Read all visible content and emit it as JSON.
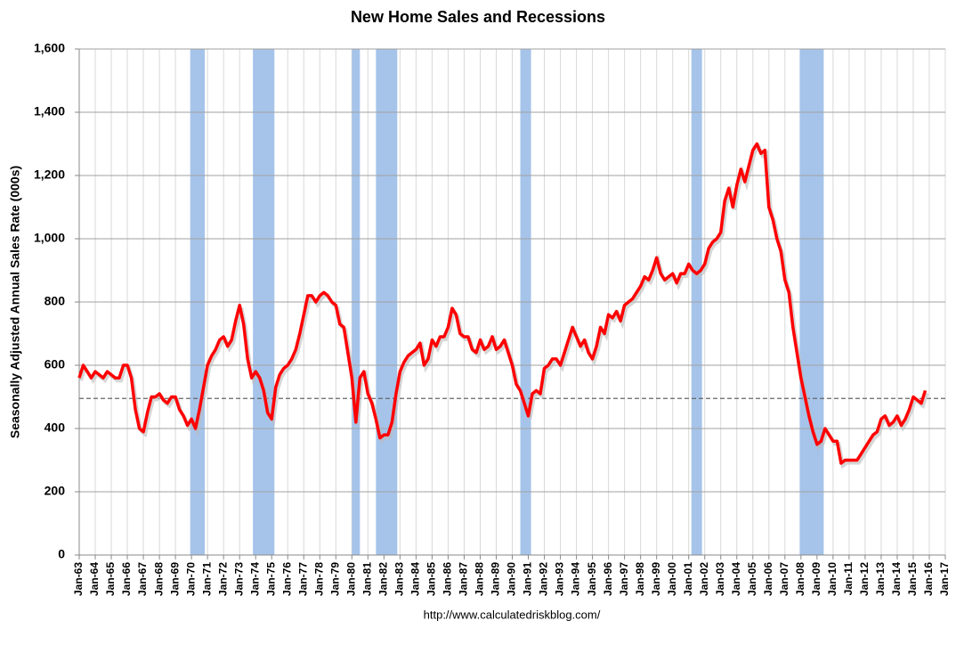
{
  "chart_data": {
    "type": "line",
    "title": "New Home Sales and Recessions",
    "y_label": "Seasonally Adjusted Annual Sales Rate (000s)",
    "source": "http://www.calculatedriskblog.com/",
    "xlim": [
      1963,
      2017
    ],
    "ylim": [
      0,
      1600
    ],
    "yticks": [
      0,
      200,
      400,
      600,
      800,
      {
        "value": 1000,
        "label": "1,000"
      },
      {
        "value": 1200,
        "label": "1,200"
      },
      {
        "value": 1400,
        "label": "1,400"
      },
      {
        "value": 1600,
        "label": "1,600"
      }
    ],
    "xticks": [
      {
        "value": 1963,
        "label": "Jan-63"
      },
      {
        "value": 1964,
        "label": "Jan-64"
      },
      {
        "value": 1965,
        "label": "Jan-65"
      },
      {
        "value": 1966,
        "label": "Jan-66"
      },
      {
        "value": 1967,
        "label": "Jan-67"
      },
      {
        "value": 1968,
        "label": "Jan-68"
      },
      {
        "value": 1969,
        "label": "Jan-69"
      },
      {
        "value": 1970,
        "label": "Jan-70"
      },
      {
        "value": 1971,
        "label": "Jan-71"
      },
      {
        "value": 1972,
        "label": "Jan-72"
      },
      {
        "value": 1973,
        "label": "Jan-73"
      },
      {
        "value": 1974,
        "label": "Jan-74"
      },
      {
        "value": 1975,
        "label": "Jan-75"
      },
      {
        "value": 1976,
        "label": "Jan-76"
      },
      {
        "value": 1977,
        "label": "Jan-77"
      },
      {
        "value": 1978,
        "label": "Jan-78"
      },
      {
        "value": 1979,
        "label": "Jan-79"
      },
      {
        "value": 1980,
        "label": "Jan-80"
      },
      {
        "value": 1981,
        "label": "Jan-81"
      },
      {
        "value": 1982,
        "label": "Jan-82"
      },
      {
        "value": 1983,
        "label": "Jan-83"
      },
      {
        "value": 1984,
        "label": "Jan-84"
      },
      {
        "value": 1985,
        "label": "Jan-85"
      },
      {
        "value": 1986,
        "label": "Jan-86"
      },
      {
        "value": 1987,
        "label": "Jan-87"
      },
      {
        "value": 1988,
        "label": "Jan-88"
      },
      {
        "value": 1989,
        "label": "Jan-89"
      },
      {
        "value": 1990,
        "label": "Jan-90"
      },
      {
        "value": 1991,
        "label": "Jan-91"
      },
      {
        "value": 1992,
        "label": "Jan-92"
      },
      {
        "value": 1993,
        "label": "Jan-93"
      },
      {
        "value": 1994,
        "label": "Jan-94"
      },
      {
        "value": 1995,
        "label": "Jan-95"
      },
      {
        "value": 1996,
        "label": "Jan-96"
      },
      {
        "value": 1997,
        "label": "Jan-97"
      },
      {
        "value": 1998,
        "label": "Jan-98"
      },
      {
        "value": 1999,
        "label": "Jan-99"
      },
      {
        "value": 2000,
        "label": "Jan-00"
      },
      {
        "value": 2001,
        "label": "Jan-01"
      },
      {
        "value": 2002,
        "label": "Jan-02"
      },
      {
        "value": 2003,
        "label": "Jan-03"
      },
      {
        "value": 2004,
        "label": "Jan-04"
      },
      {
        "value": 2005,
        "label": "Jan-05"
      },
      {
        "value": 2006,
        "label": "Jan-06"
      },
      {
        "value": 2007,
        "label": "Jan-07"
      },
      {
        "value": 2008,
        "label": "Jan-08"
      },
      {
        "value": 2009,
        "label": "Jan-09"
      },
      {
        "value": 2010,
        "label": "Jan-10"
      },
      {
        "value": 2011,
        "label": "Jan-11"
      },
      {
        "value": 2012,
        "label": "Jan-12"
      },
      {
        "value": 2013,
        "label": "Jan-13"
      },
      {
        "value": 2014,
        "label": "Jan-14"
      },
      {
        "value": 2015,
        "label": "Jan-15"
      },
      {
        "value": 2016,
        "label": "Jan-16"
      },
      {
        "value": 2017,
        "label": "Jan-17"
      }
    ],
    "grid": true,
    "recession_color": "#a6c4ea",
    "recessions": [
      [
        1969.92,
        1970.83
      ],
      [
        1973.83,
        1975.17
      ],
      [
        1980.0,
        1980.5
      ],
      [
        1981.5,
        1982.83
      ],
      [
        1990.5,
        1991.17
      ],
      [
        2001.17,
        2001.83
      ],
      [
        2007.92,
        2009.42
      ]
    ],
    "reference_line": 495,
    "series": [
      {
        "color": "#ff0000",
        "x": [
          1963,
          1963.25,
          1963.5,
          1963.75,
          1964,
          1964.25,
          1964.5,
          1964.75,
          1965,
          1965.25,
          1965.5,
          1965.75,
          1966,
          1966.25,
          1966.5,
          1966.75,
          1967,
          1967.25,
          1967.5,
          1967.75,
          1968,
          1968.25,
          1968.5,
          1968.75,
          1969,
          1969.25,
          1969.5,
          1969.75,
          1970,
          1970.25,
          1970.5,
          1970.75,
          1971,
          1971.25,
          1971.5,
          1971.75,
          1972,
          1972.25,
          1972.5,
          1972.75,
          1973,
          1973.25,
          1973.5,
          1973.75,
          1974,
          1974.25,
          1974.5,
          1974.75,
          1975,
          1975.25,
          1975.5,
          1975.75,
          1976,
          1976.25,
          1976.5,
          1976.75,
          1977,
          1977.25,
          1977.5,
          1977.75,
          1978,
          1978.25,
          1978.5,
          1978.75,
          1979,
          1979.25,
          1979.5,
          1979.75,
          1980,
          1980.25,
          1980.5,
          1980.75,
          1981,
          1981.25,
          1981.5,
          1981.75,
          1982,
          1982.25,
          1982.5,
          1982.75,
          1983,
          1983.25,
          1983.5,
          1983.75,
          1984,
          1984.25,
          1984.5,
          1984.75,
          1985,
          1985.25,
          1985.5,
          1985.75,
          1986,
          1986.25,
          1986.5,
          1986.75,
          1987,
          1987.25,
          1987.5,
          1987.75,
          1988,
          1988.25,
          1988.5,
          1988.75,
          1989,
          1989.25,
          1989.5,
          1989.75,
          1990,
          1990.25,
          1990.5,
          1990.75,
          1991,
          1991.25,
          1991.5,
          1991.75,
          1992,
          1992.25,
          1992.5,
          1992.75,
          1993,
          1993.25,
          1993.5,
          1993.75,
          1994,
          1994.25,
          1994.5,
          1994.75,
          1995,
          1995.25,
          1995.5,
          1995.75,
          1996,
          1996.25,
          1996.5,
          1996.75,
          1997,
          1997.25,
          1997.5,
          1997.75,
          1998,
          1998.25,
          1998.5,
          1998.75,
          1999,
          1999.25,
          1999.5,
          1999.75,
          2000,
          2000.25,
          2000.5,
          2000.75,
          2001,
          2001.25,
          2001.5,
          2001.75,
          2002,
          2002.25,
          2002.5,
          2002.75,
          2003,
          2003.25,
          2003.5,
          2003.75,
          2004,
          2004.25,
          2004.5,
          2004.75,
          2005,
          2005.25,
          2005.5,
          2005.75,
          2006,
          2006.25,
          2006.5,
          2006.75,
          2007,
          2007.25,
          2007.5,
          2007.75,
          2008,
          2008.25,
          2008.5,
          2008.75,
          2009,
          2009.25,
          2009.5,
          2009.75,
          2010,
          2010.25,
          2010.5,
          2010.75,
          2011,
          2011.25,
          2011.5,
          2011.75,
          2012,
          2012.25,
          2012.5,
          2012.75,
          2013,
          2013.25,
          2013.5,
          2013.75,
          2014,
          2014.25,
          2014.5,
          2014.75,
          2015,
          2015.25,
          2015.5,
          2015.75
        ],
        "values": [
          560,
          600,
          580,
          560,
          580,
          570,
          560,
          580,
          570,
          560,
          560,
          600,
          600,
          560,
          460,
          400,
          390,
          450,
          500,
          500,
          510,
          490,
          480,
          500,
          500,
          460,
          440,
          410,
          430,
          400,
          460,
          530,
          600,
          630,
          650,
          680,
          690,
          660,
          680,
          740,
          790,
          730,
          620,
          560,
          580,
          560,
          520,
          450,
          430,
          530,
          570,
          590,
          600,
          620,
          650,
          700,
          760,
          820,
          820,
          800,
          820,
          830,
          820,
          800,
          790,
          730,
          720,
          640,
          560,
          420,
          560,
          580,
          510,
          480,
          430,
          370,
          380,
          380,
          420,
          510,
          580,
          610,
          630,
          640,
          650,
          670,
          600,
          620,
          680,
          660,
          690,
          690,
          720,
          780,
          760,
          700,
          690,
          690,
          650,
          640,
          680,
          650,
          660,
          690,
          650,
          660,
          680,
          640,
          600,
          540,
          520,
          480,
          440,
          510,
          520,
          510,
          590,
          600,
          620,
          620,
          600,
          640,
          680,
          720,
          690,
          660,
          680,
          640,
          620,
          660,
          720,
          700,
          760,
          750,
          770,
          740,
          790,
          800,
          810,
          830,
          850,
          880,
          870,
          900,
          940,
          890,
          870,
          880,
          890,
          860,
          890,
          890,
          920,
          900,
          890,
          900,
          920,
          970,
          990,
          1000,
          1020,
          1120,
          1160,
          1100,
          1170,
          1220,
          1180,
          1230,
          1280,
          1300,
          1270,
          1280,
          1100,
          1060,
          1000,
          960,
          870,
          830,
          720,
          640,
          560,
          500,
          440,
          390,
          350,
          360,
          400,
          380,
          360,
          360,
          290,
          300,
          300,
          300,
          300,
          320,
          340,
          360,
          380,
          390,
          430,
          440,
          410,
          420,
          440,
          410,
          430,
          460,
          500,
          490,
          480,
          520
        ]
      }
    ]
  }
}
